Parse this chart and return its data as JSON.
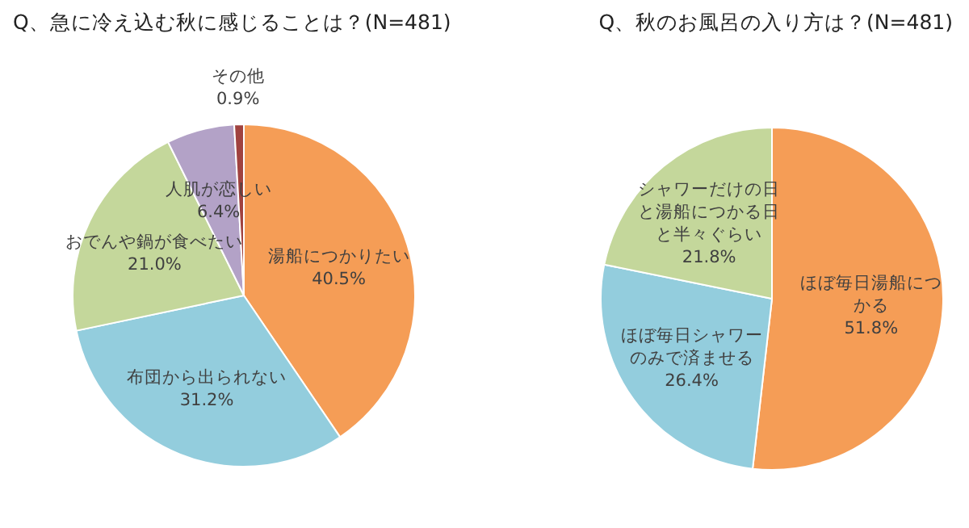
{
  "chart_data": [
    {
      "type": "pie",
      "title": "Q、急に冷え込む秋に感じることは？(N=481)",
      "categories": [
        "湯船につかりたい",
        "布団から出られない",
        "おでんや鍋が食べたい",
        "人肌が恋しい",
        "その他"
      ],
      "values": [
        40.5,
        31.2,
        21.0,
        6.4,
        0.9
      ],
      "value_labels": [
        "40.5%",
        "31.2%",
        "21.0%",
        "6.4%",
        "0.9%"
      ],
      "colors": [
        "#f59d56",
        "#93cddd",
        "#c4d79b",
        "#b3a2c7",
        "#a0423f"
      ]
    },
    {
      "type": "pie",
      "title": "Q、秋のお風呂の入り方は？(N=481)",
      "categories": [
        "ほぼ毎日湯船につかる",
        "ほぼ毎日シャワーのみで済ませる",
        "シャワーだけの日と湯船につかる日と半々ぐらい"
      ],
      "values": [
        51.8,
        26.4,
        21.8
      ],
      "value_labels": [
        "51.8%",
        "26.4%",
        "21.8%"
      ],
      "colors": [
        "#f59d56",
        "#93cddd",
        "#c4d79b"
      ]
    }
  ]
}
